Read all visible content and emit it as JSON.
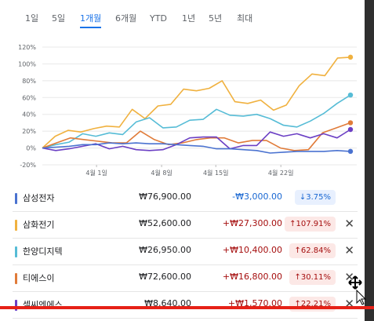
{
  "tabs": [
    "1일",
    "5일",
    "1개월",
    "6개월",
    "YTD",
    "1년",
    "5년",
    "최대"
  ],
  "active_tab": "1개월",
  "chart_data": {
    "type": "line",
    "y_ticks": [
      "120%",
      "100%",
      "80%",
      "60%",
      "40%",
      "20%",
      "0%",
      "-20%"
    ],
    "ylim": [
      -20,
      120
    ],
    "x_ticks": [
      "4월 1일",
      "4월 8일",
      "4월 15일",
      "4월 22일"
    ],
    "x": [
      0,
      1,
      2,
      3,
      4,
      5,
      6,
      7,
      8,
      9,
      10,
      11,
      12,
      13,
      14,
      15,
      16,
      17,
      18,
      19,
      20,
      21,
      22,
      23,
      24,
      25,
      26,
      27,
      28,
      29
    ],
    "x_tick_positions": [
      5,
      11,
      16,
      22
    ],
    "series": [
      {
        "color": "#f0b13f",
        "values": [
          0,
          14,
          21,
          19,
          23,
          26,
          25,
          46,
          35,
          50,
          52,
          70,
          68,
          71,
          80,
          55,
          53,
          57,
          45,
          51,
          74,
          88,
          86,
          107,
          108,
          0,
          0,
          0,
          0,
          0
        ]
      },
      {
        "color": "#56bcd6",
        "values": [
          0,
          4,
          7,
          17,
          14,
          18,
          16,
          31,
          36,
          24,
          25,
          33,
          34,
          46,
          39,
          38,
          40,
          35,
          27,
          25,
          32,
          41,
          53,
          63,
          0,
          0,
          0,
          0,
          0,
          0
        ]
      },
      {
        "color": "#e07b39",
        "values": [
          0,
          6,
          12,
          10,
          8,
          6,
          6,
          20,
          10,
          4,
          6,
          10,
          12,
          12,
          6,
          9,
          9,
          0,
          -3,
          -2,
          18,
          24,
          30,
          0,
          0,
          0,
          0,
          0,
          0,
          0
        ]
      },
      {
        "color": "#6b3fc4",
        "values": [
          0,
          -3,
          -1,
          2,
          5,
          -1,
          2,
          -2,
          -3,
          -2,
          4,
          12,
          13,
          13,
          -1,
          3,
          3,
          19,
          14,
          17,
          12,
          17,
          12,
          22,
          0,
          0,
          0,
          0,
          0,
          0
        ]
      },
      {
        "color": "#4a72d0",
        "values": [
          0,
          1,
          2,
          4,
          4,
          6,
          5,
          6,
          5,
          5,
          4,
          3,
          2,
          -1,
          -1,
          -2,
          -3,
          -6,
          -5,
          -4,
          -4,
          -4,
          -3,
          -4,
          0,
          0,
          0,
          0,
          0,
          0
        ]
      }
    ]
  },
  "stocks": [
    {
      "name": "삼성전자",
      "color": "#4a72d0",
      "price": "₩76,900.00",
      "change": "-₩3,000.00",
      "pct": "↓3.75%",
      "dir": "neg",
      "close": ""
    },
    {
      "name": "삼화전기",
      "color": "#f0b13f",
      "price": "₩52,600.00",
      "change": "+₩27,300.00",
      "pct": "↑107.91%",
      "dir": "pos",
      "close": "✕"
    },
    {
      "name": "한양디지텍",
      "color": "#56bcd6",
      "price": "₩26,950.00",
      "change": "+₩10,400.00",
      "pct": "↑62.84%",
      "dir": "pos",
      "close": "✕"
    },
    {
      "name": "티에스이",
      "color": "#e07b39",
      "price": "₩72,600.00",
      "change": "+₩16,800.00",
      "pct": "↑30.11%",
      "dir": "pos",
      "close": "✕"
    },
    {
      "name": "셀씨엔에스",
      "color": "#6b3fc4",
      "price": "₩8,640.00",
      "change": "+₩1,570.00",
      "pct": "↑22.21%",
      "dir": "pos",
      "close": "✕"
    }
  ]
}
